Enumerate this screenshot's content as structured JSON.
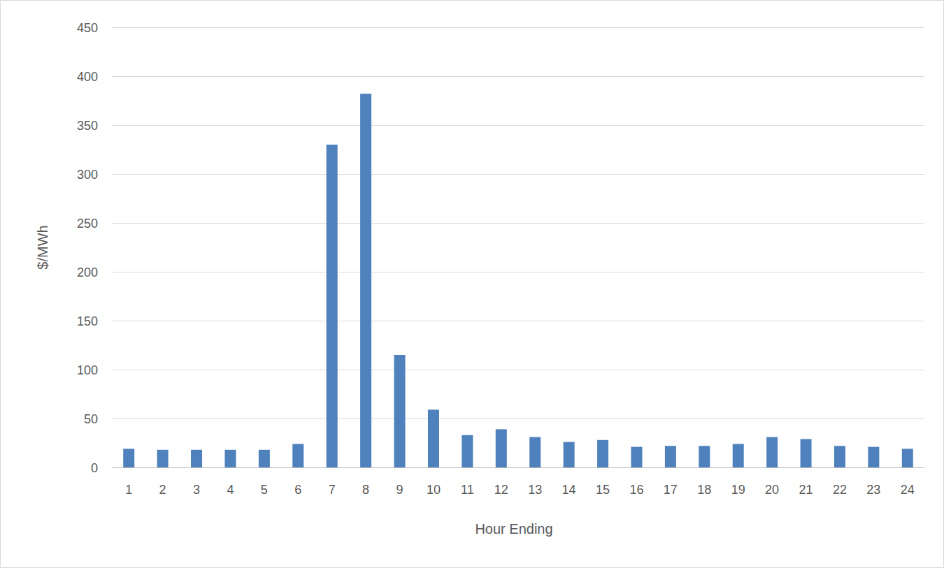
{
  "chart_data": {
    "type": "bar",
    "x_label": "Hour Ending",
    "y_label": "$/MWh",
    "categories": [
      "1",
      "2",
      "3",
      "4",
      "5",
      "6",
      "7",
      "8",
      "9",
      "10",
      "11",
      "12",
      "13",
      "14",
      "15",
      "16",
      "17",
      "18",
      "19",
      "20",
      "21",
      "22",
      "23",
      "24"
    ],
    "values": [
      19,
      18,
      18,
      18,
      18,
      24,
      330,
      382,
      115,
      59,
      33,
      39,
      31,
      26,
      28,
      21,
      22,
      22,
      24,
      31,
      29,
      22,
      21,
      19
    ],
    "color": "#4f81bd",
    "ylim": [
      0,
      450
    ],
    "yticks": [
      0,
      50,
      100,
      150,
      200,
      250,
      300,
      350,
      400,
      450
    ],
    "grid": true
  }
}
